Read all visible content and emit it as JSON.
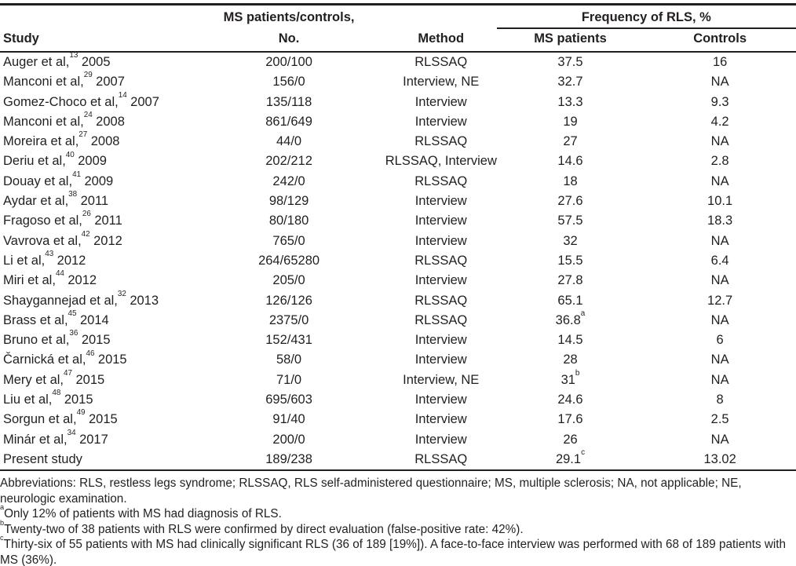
{
  "table": {
    "header": {
      "study": "Study",
      "no_line1": "MS patients/controls,",
      "no_line2": "No.",
      "method": "Method",
      "freq_spanner": "Frequency of RLS, %",
      "ms_patients": "MS patients",
      "controls": "Controls"
    },
    "rows": [
      {
        "study": "Auger et al,",
        "ref": "13",
        "year": "2005",
        "no": "200/100",
        "method": "RLSSAQ",
        "ms": "37.5",
        "ms_sup": "",
        "controls": "16"
      },
      {
        "study": "Manconi et al,",
        "ref": "29",
        "year": "2007",
        "no": "156/0",
        "method": "Interview, NE",
        "ms": "32.7",
        "ms_sup": "",
        "controls": "NA"
      },
      {
        "study": "Gomez-Choco et al,",
        "ref": "14",
        "year": "2007",
        "no": "135/118",
        "method": "Interview",
        "ms": "13.3",
        "ms_sup": "",
        "controls": "9.3"
      },
      {
        "study": "Manconi et al,",
        "ref": "24",
        "year": "2008",
        "no": "861/649",
        "method": "Interview",
        "ms": "19",
        "ms_sup": "",
        "controls": "4.2"
      },
      {
        "study": "Moreira et al,",
        "ref": "27",
        "year": "2008",
        "no": "44/0",
        "method": "RLSSAQ",
        "ms": "27",
        "ms_sup": "",
        "controls": "NA"
      },
      {
        "study": "Deriu et al,",
        "ref": "40",
        "year": "2009",
        "no": "202/212",
        "method": "RLSSAQ, Interview",
        "ms": "14.6",
        "ms_sup": "",
        "controls": "2.8"
      },
      {
        "study": "Douay et al,",
        "ref": "41",
        "year": "2009",
        "no": "242/0",
        "method": "RLSSAQ",
        "ms": "18",
        "ms_sup": "",
        "controls": "NA"
      },
      {
        "study": "Aydar et al,",
        "ref": "38",
        "year": "2011",
        "no": "98/129",
        "method": "Interview",
        "ms": "27.6",
        "ms_sup": "",
        "controls": "10.1"
      },
      {
        "study": "Fragoso et al,",
        "ref": "26",
        "year": "2011",
        "no": "80/180",
        "method": "Interview",
        "ms": "57.5",
        "ms_sup": "",
        "controls": "18.3"
      },
      {
        "study": "Vavrova et al,",
        "ref": "42",
        "year": "2012",
        "no": "765/0",
        "method": "Interview",
        "ms": "32",
        "ms_sup": "",
        "controls": "NA"
      },
      {
        "study": "Li et al,",
        "ref": "43",
        "year": "2012",
        "no": "264/65280",
        "method": "RLSSAQ",
        "ms": "15.5",
        "ms_sup": "",
        "controls": "6.4"
      },
      {
        "study": "Miri et al,",
        "ref": "44",
        "year": "2012",
        "no": "205/0",
        "method": "Interview",
        "ms": "27.8",
        "ms_sup": "",
        "controls": "NA"
      },
      {
        "study": "Shaygannejad et al,",
        "ref": "32",
        "year": "2013",
        "no": "126/126",
        "method": "RLSSAQ",
        "ms": "65.1",
        "ms_sup": "",
        "controls": "12.7"
      },
      {
        "study": "Brass et al,",
        "ref": "45",
        "year": "2014",
        "no": "2375/0",
        "method": "RLSSAQ",
        "ms": "36.8",
        "ms_sup": "a",
        "controls": "NA"
      },
      {
        "study": "Bruno et al,",
        "ref": "36",
        "year": "2015",
        "no": "152/431",
        "method": "Interview",
        "ms": "14.5",
        "ms_sup": "",
        "controls": "6"
      },
      {
        "study": "Čarnická et al,",
        "ref": "46",
        "year": "2015",
        "no": "58/0",
        "method": "Interview",
        "ms": "28",
        "ms_sup": "",
        "controls": "NA"
      },
      {
        "study": "Mery et al,",
        "ref": "47",
        "year": "2015",
        "no": "71/0",
        "method": "Interview, NE",
        "ms": "31",
        "ms_sup": "b",
        "controls": "NA"
      },
      {
        "study": "Liu et al,",
        "ref": "48",
        "year": "2015",
        "no": "695/603",
        "method": "Interview",
        "ms": "24.6",
        "ms_sup": "",
        "controls": "8"
      },
      {
        "study": "Sorgun et al,",
        "ref": "49",
        "year": "2015",
        "no": "91/40",
        "method": "Interview",
        "ms": "17.6",
        "ms_sup": "",
        "controls": "2.5"
      },
      {
        "study": "Minár et al,",
        "ref": "34",
        "year": "2017",
        "no": "200/0",
        "method": "Interview",
        "ms": "26",
        "ms_sup": "",
        "controls": "NA"
      },
      {
        "study": "Present study",
        "ref": "",
        "year": "",
        "no": "189/238",
        "method": "RLSSAQ",
        "ms": "29.1",
        "ms_sup": "c",
        "controls": "13.02"
      }
    ]
  },
  "footnotes": {
    "abbreviations": "Abbreviations: RLS, restless legs syndrome; RLSSAQ, RLS self-administered questionnaire; MS, multiple sclerosis; NA, not applicable; NE, neurologic examination.",
    "a": {
      "sup": "a",
      "text": "Only 12% of patients with MS had diagnosis of RLS."
    },
    "b": {
      "sup": "b",
      "text": "Twenty-two of 38 patients with RLS were confirmed by direct evaluation (false-positive rate: 42%)."
    },
    "c": {
      "sup": "c",
      "text": "Thirty-six of 55 patients with MS had clinically significant RLS (36 of 189 [19%]). A face-to-face interview was performed with 68 of 189 patients with MS (36%)."
    }
  },
  "colors": {
    "text": "#231f20",
    "rule": "#231f20",
    "background": "#ffffff"
  }
}
